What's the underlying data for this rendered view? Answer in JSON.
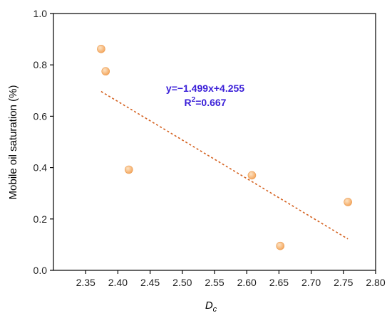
{
  "chart_data": {
    "type": "scatter",
    "title": "",
    "xlabel": "D",
    "xlabel_subscript": "c",
    "ylabel": "Mobile oil saturation (%)",
    "xlim": [
      2.3,
      2.8
    ],
    "ylim": [
      0.0,
      1.0
    ],
    "xticks": [
      "2.35",
      "2.40",
      "2.45",
      "2.50",
      "2.55",
      "2.60",
      "2.65",
      "2.70",
      "2.75",
      "2.80"
    ],
    "yticks": [
      "0.0",
      "0.2",
      "0.4",
      "0.6",
      "0.8",
      "1.0"
    ],
    "points": [
      {
        "x": 2.374,
        "y": 0.862
      },
      {
        "x": 2.381,
        "y": 0.775
      },
      {
        "x": 2.417,
        "y": 0.392
      },
      {
        "x": 2.608,
        "y": 0.37
      },
      {
        "x": 2.652,
        "y": 0.095
      },
      {
        "x": 2.757,
        "y": 0.266
      }
    ],
    "fit": {
      "slope": -1.499,
      "intercept": 4.255,
      "x_from": 2.374,
      "x_to": 2.757
    },
    "annotation": {
      "equation": "y=−1.499x+4.255",
      "r2_prefix": "R",
      "r2_sup": "2",
      "r2_value": "=0.667"
    },
    "grid": false,
    "colors": {
      "marker": "#f4a860",
      "marker_highlight": "#fde3c4",
      "fit_line": "#d4601e",
      "annotation": "#3a1fd8",
      "axis": "#000000"
    }
  }
}
